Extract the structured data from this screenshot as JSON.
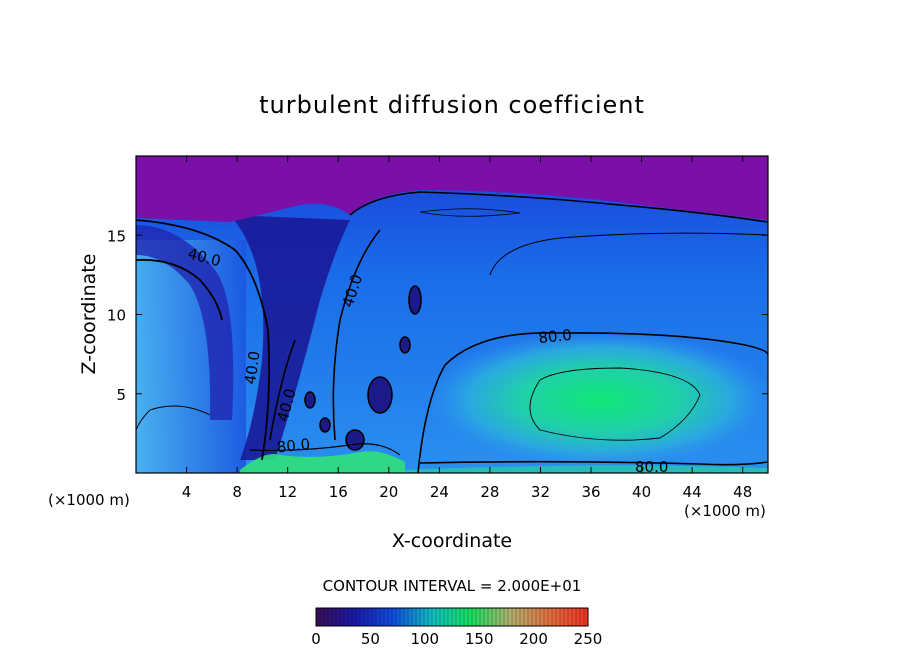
{
  "chart_data": {
    "type": "heatmap",
    "title": "turbulent diffusion coefficient",
    "xlabel": "X-coordinate",
    "ylabel": "Z-coordinate",
    "x_unit_left": "(×1000 m)",
    "x_unit_right": "(×1000 m)",
    "xlim": [
      0,
      50
    ],
    "ylim": [
      0,
      20
    ],
    "x_ticks": [
      4,
      8,
      12,
      16,
      20,
      24,
      28,
      32,
      36,
      40,
      44,
      48
    ],
    "y_ticks": [
      5,
      10,
      15
    ],
    "contour_interval_text": "CONTOUR INTERVAL = 2.000E+01",
    "contour_labels": [
      {
        "text": "40.0",
        "x": 5.3,
        "z": 13.3,
        "rot": 15
      },
      {
        "text": "40.0",
        "x": 17.5,
        "z": 11.4,
        "rot": -72
      },
      {
        "text": "40.0",
        "x": 9.6,
        "z": 6.6,
        "rot": -82
      },
      {
        "text": "40.0",
        "x": 12.3,
        "z": 4.2,
        "rot": -75
      },
      {
        "text": "80.0",
        "x": 33.2,
        "z": 8.3,
        "rot": -6
      },
      {
        "text": "80.0",
        "x": 12.5,
        "z": 1.4,
        "rot": -6
      },
      {
        "text": "80.0",
        "x": 40.8,
        "z": 0.05,
        "rot": 0
      }
    ],
    "colorbar": {
      "min": 0,
      "max": 250,
      "ticks": [
        "0",
        "50",
        "100",
        "150",
        "200",
        "250"
      ],
      "colors": [
        "#3a0d55",
        "#1a1aa8",
        "#0f4fe0",
        "#10c0c0",
        "#18e060",
        "#b0b070",
        "#e07040",
        "#f03020"
      ]
    },
    "colors": {
      "top_layer": "#7a10a8",
      "deep": "#1c1aa8",
      "mid": "#1a5be6",
      "light": "#3a9ff0",
      "core": "#10e07a"
    }
  }
}
